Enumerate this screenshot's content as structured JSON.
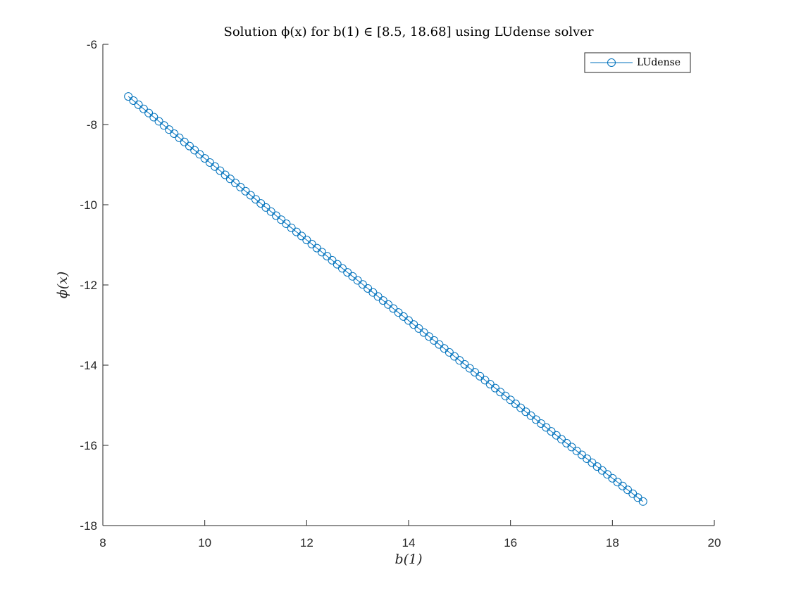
{
  "chart_data": {
    "type": "line",
    "title": "Solution ϕ(x) for b(1) ∈ [8.5, 18.68] using LUdense solver",
    "xlabel": "b(1)",
    "ylabel": "ϕ(x)",
    "xlim": [
      8,
      20
    ],
    "ylim": [
      -18,
      -6
    ],
    "xticks": [
      8,
      10,
      12,
      14,
      16,
      18,
      20
    ],
    "yticks": [
      -18,
      -16,
      -14,
      -12,
      -10,
      -8,
      -6
    ],
    "grid": false,
    "legend_position": "top-right",
    "series": [
      {
        "name": "LUdense",
        "color": "#0072BD",
        "marker": "circle",
        "x_start": 8.5,
        "x_end": 18.6,
        "n_points": 102,
        "x": [
          8.5,
          18.6
        ],
        "y": [
          -7.3,
          -17.4
        ]
      }
    ]
  }
}
